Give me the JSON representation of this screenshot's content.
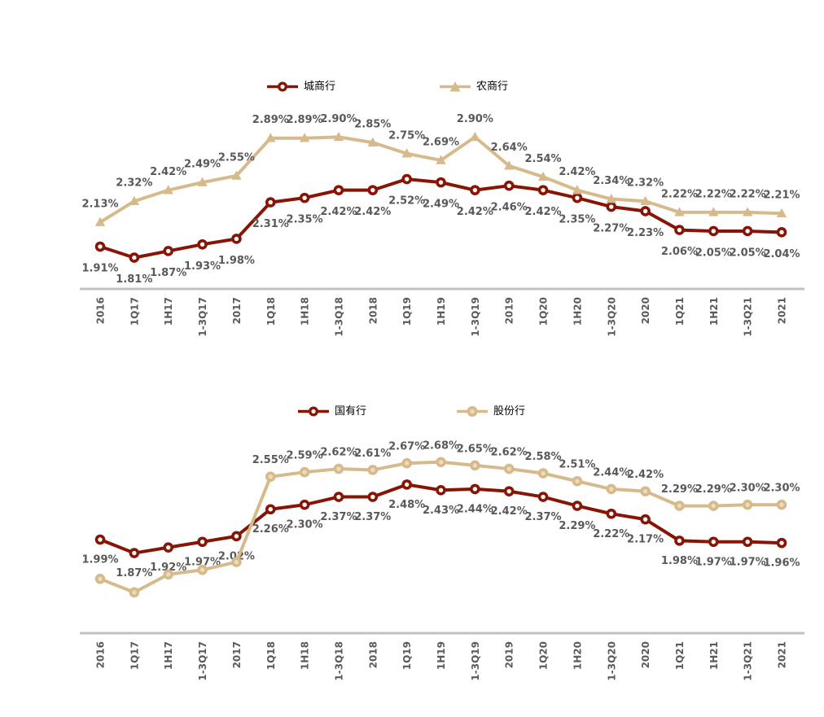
{
  "style": {
    "background": "#FFFFFF",
    "red": "#871505",
    "tan": "#D6BA8C",
    "tan_marker_core": "#EBDCBB",
    "red_marker_core": "#FFFFFF",
    "data_label_color": "#595959",
    "axis_label_color": "#5A5A5A",
    "axis_line_color": "#C2C2C2",
    "legend_text_color": "#000000"
  },
  "chart_data": [
    {
      "id": "top",
      "type": "line",
      "title": "",
      "legend_position": "top-center",
      "gridlines": false,
      "x_tick_style": "rotated-vertical",
      "ylim": [
        1.5,
        3.2
      ],
      "categories": [
        "2016",
        "1Q17",
        "1H17",
        "1-3Q17",
        "2017",
        "1Q18",
        "1H18",
        "1-3Q18",
        "2018",
        "1Q19",
        "1H19",
        "1-3Q19",
        "2019",
        "1Q20",
        "1H20",
        "1-3Q20",
        "2020",
        "1Q21",
        "1H21",
        "1-3Q21",
        "2021"
      ],
      "series": [
        {
          "name": "城商行",
          "color": "#871505",
          "marker": "circle",
          "marker_core": "#FFFFFF",
          "data_label_position": "below",
          "values": [
            1.91,
            1.81,
            1.87,
            1.93,
            1.98,
            2.31,
            2.35,
            2.42,
            2.42,
            2.52,
            2.49,
            2.42,
            2.46,
            2.42,
            2.35,
            2.27,
            2.23,
            2.06,
            2.05,
            2.05,
            2.04
          ],
          "data_labels": [
            "1.91%",
            "1.81%",
            "1.87%",
            "1.93%",
            "1.98%",
            "2.31%",
            "2.35%",
            "2.42%",
            "2.42%",
            "2.52%",
            "2.49%",
            "2.42%",
            "2.46%",
            "2.42%",
            "2.35%",
            "2.27%",
            "2.23%",
            "2.06%",
            "2.05%",
            "2.05%",
            "2.04%"
          ]
        },
        {
          "name": "农商行",
          "color": "#D6BA8C",
          "marker": "triangle",
          "marker_core": "#D6BA8C",
          "data_label_position": "above",
          "values": [
            2.13,
            2.32,
            2.42,
            2.49,
            2.55,
            2.89,
            2.89,
            2.9,
            2.85,
            2.75,
            2.69,
            2.9,
            2.64,
            2.54,
            2.42,
            2.34,
            2.32,
            2.22,
            2.22,
            2.22,
            2.21
          ],
          "data_labels": [
            "2.13%",
            "2.32%",
            "2.42%",
            "2.49%",
            "2.55%",
            "2.89%",
            "2.89%",
            "2.90%",
            "2.85%",
            "2.75%",
            "2.69%",
            "2.90%",
            "2.64%",
            "2.54%",
            "2.42%",
            "2.34%",
            "2.32%",
            "2.22%",
            "2.22%",
            "2.22%",
            "2.21%"
          ]
        }
      ]
    },
    {
      "id": "bottom",
      "type": "line",
      "title": "",
      "legend_position": "top-center",
      "gridlines": false,
      "x_tick_style": "rotated-vertical",
      "ylim": [
        1.15,
        2.9
      ],
      "categories": [
        "2016",
        "1Q17",
        "1H17",
        "1-3Q17",
        "2017",
        "1Q18",
        "1H18",
        "1-3Q18",
        "2018",
        "1Q19",
        "1H19",
        "1-3Q19",
        "2019",
        "1Q20",
        "1H20",
        "1-3Q20",
        "2020",
        "1Q21",
        "1H21",
        "1-3Q21",
        "2021"
      ],
      "series": [
        {
          "name": "国有行",
          "color": "#871505",
          "marker": "circle",
          "marker_core": "#FFFFFF",
          "data_label_position": "below",
          "values": [
            1.99,
            1.87,
            1.92,
            1.97,
            2.02,
            2.26,
            2.3,
            2.37,
            2.37,
            2.48,
            2.43,
            2.44,
            2.42,
            2.37,
            2.29,
            2.22,
            2.17,
            1.98,
            1.97,
            1.97,
            1.96
          ],
          "data_labels": [
            "1.99%",
            "1.87%",
            "1.92%",
            "1.97%",
            "2.02%",
            "2.26%",
            "2.30%",
            "2.37%",
            "2.37%",
            "2.48%",
            "2.43%",
            "2.44%",
            "2.42%",
            "2.37%",
            "2.29%",
            "2.22%",
            "2.17%",
            "1.98%",
            "1.97%",
            "1.97%",
            "1.96%"
          ]
        },
        {
          "name": "股份行",
          "color": "#D6BA8C",
          "marker": "circle",
          "marker_core": "#EBDCBB",
          "data_label_position": "above",
          "values": [
            1.64,
            1.52,
            1.68,
            1.72,
            1.79,
            2.55,
            2.59,
            2.62,
            2.61,
            2.67,
            2.68,
            2.65,
            2.62,
            2.58,
            2.51,
            2.44,
            2.42,
            2.29,
            2.29,
            2.3,
            2.3
          ],
          "data_labels": [
            null,
            null,
            null,
            null,
            null,
            "2.55%",
            "2.59%",
            "2.62%",
            "2.61%",
            "2.67%",
            "2.68%",
            "2.65%",
            "2.62%",
            "2.58%",
            "2.51%",
            "2.44%",
            "2.42%",
            "2.29%",
            "2.29%",
            "2.30%",
            "2.30%"
          ]
        }
      ]
    }
  ]
}
